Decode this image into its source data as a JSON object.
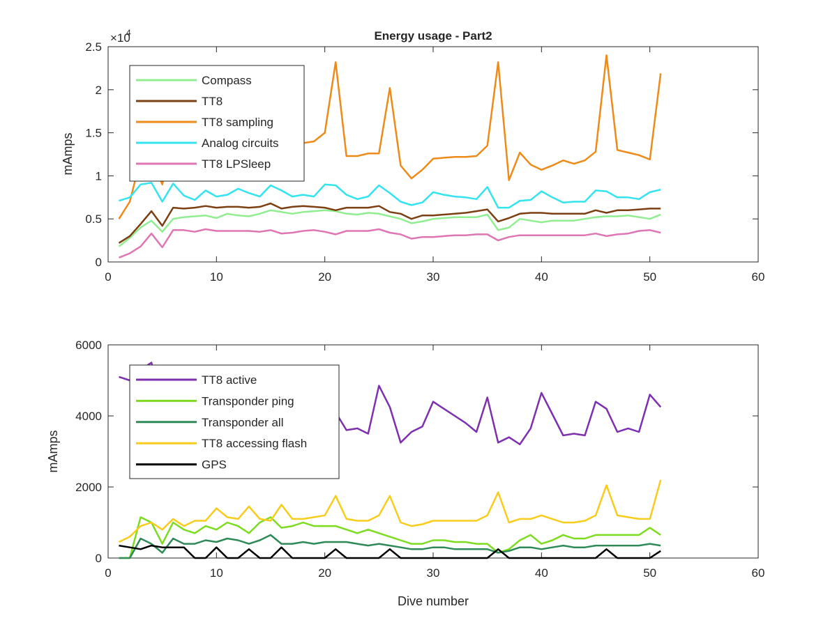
{
  "chart_data": [
    {
      "type": "line",
      "title": "Energy usage - Part2",
      "xlabel": "",
      "ylabel": "mAmps",
      "exponent_label": "×10",
      "exponent_power": "4",
      "xlim": [
        0,
        60
      ],
      "ylim": [
        0,
        25000
      ],
      "xticks": [
        0,
        10,
        20,
        30,
        40,
        50,
        60
      ],
      "xtick_labels": [
        "0",
        "10",
        "20",
        "30",
        "40",
        "50",
        "60"
      ],
      "yticks": [
        0,
        5000,
        10000,
        15000,
        20000,
        25000
      ],
      "ytick_labels": [
        "0",
        "0.5",
        "1",
        "1.5",
        "2",
        "2.5"
      ],
      "grid": false,
      "legend_position": "top-left",
      "x": [
        1,
        2,
        3,
        4,
        5,
        6,
        7,
        8,
        9,
        10,
        11,
        12,
        13,
        14,
        15,
        16,
        17,
        18,
        19,
        20,
        21,
        22,
        23,
        24,
        25,
        26,
        27,
        28,
        29,
        30,
        31,
        32,
        33,
        34,
        35,
        36,
        37,
        38,
        39,
        40,
        41,
        42,
        43,
        44,
        45,
        46,
        47,
        48,
        49,
        50,
        51
      ],
      "series": [
        {
          "name": "Compass",
          "color": "#90ee90",
          "values": [
            1800,
            2800,
            4000,
            4800,
            3500,
            5000,
            5200,
            5300,
            5400,
            5100,
            5600,
            5400,
            5300,
            5600,
            6000,
            5800,
            5600,
            5800,
            5900,
            6000,
            5900,
            5600,
            5500,
            5700,
            5600,
            5300,
            5000,
            4500,
            4700,
            5000,
            5100,
            5200,
            5200,
            5200,
            5500,
            3700,
            4000,
            5000,
            4800,
            4600,
            4800,
            4800,
            4800,
            5000,
            5200,
            5300,
            5300,
            5400,
            5200,
            5000,
            5500
          ]
        },
        {
          "name": "TT8",
          "color": "#7b3f12",
          "values": [
            2200,
            3000,
            4400,
            5900,
            4200,
            6300,
            6200,
            6300,
            6500,
            6300,
            6400,
            6400,
            6300,
            6400,
            6800,
            6200,
            6400,
            6500,
            6400,
            6300,
            6000,
            6300,
            6300,
            6300,
            6500,
            5800,
            5600,
            5000,
            5400,
            5400,
            5500,
            5600,
            5700,
            5900,
            6100,
            4700,
            5100,
            5600,
            5700,
            5700,
            5600,
            5600,
            5600,
            5600,
            6000,
            5700,
            6000,
            6000,
            6100,
            6200,
            6200
          ]
        },
        {
          "name": "TT8 sampling",
          "color": "#ee8a18",
          "values": [
            5000,
            7000,
            12000,
            12000,
            9000,
            15000,
            15500,
            15800,
            16000,
            16000,
            15800,
            15800,
            15800,
            16000,
            15800,
            14000,
            13700,
            13800,
            14000,
            15000,
            23200,
            12300,
            12300,
            12600,
            12600,
            20200,
            11200,
            9700,
            10700,
            12000,
            12100,
            12200,
            12200,
            12300,
            13500,
            23200,
            9500,
            12700,
            11300,
            10700,
            11200,
            11800,
            11400,
            11800,
            12800,
            24000,
            13000,
            12700,
            12400,
            11900,
            21900
          ]
        },
        {
          "name": "Analog circuits",
          "color": "#33e4ee",
          "values": [
            7100,
            7500,
            9000,
            9200,
            7000,
            9100,
            7700,
            7200,
            8300,
            7600,
            7800,
            8500,
            8000,
            7600,
            8900,
            8300,
            7600,
            7800,
            7600,
            9000,
            8900,
            7800,
            7300,
            7600,
            8900,
            8000,
            7000,
            6600,
            6900,
            8100,
            7800,
            7600,
            7500,
            7300,
            8700,
            6300,
            6300,
            7100,
            7200,
            8200,
            7500,
            6900,
            7000,
            7000,
            8300,
            8200,
            7500,
            7500,
            7300,
            8100,
            8400
          ]
        },
        {
          "name": "TT8 LPSleep",
          "color": "#e075b4",
          "values": [
            500,
            1000,
            1800,
            3300,
            1700,
            3700,
            3700,
            3500,
            3800,
            3600,
            3600,
            3600,
            3600,
            3500,
            3700,
            3300,
            3400,
            3600,
            3700,
            3500,
            3200,
            3600,
            3600,
            3600,
            3800,
            3400,
            3200,
            2700,
            2900,
            2900,
            3000,
            3100,
            3100,
            3200,
            3200,
            2500,
            2900,
            3100,
            3100,
            3100,
            3100,
            3100,
            3100,
            3100,
            3300,
            3000,
            3200,
            3300,
            3600,
            3700,
            3400
          ]
        }
      ]
    },
    {
      "type": "line",
      "title": "",
      "xlabel": "Dive number",
      "ylabel": "mAmps",
      "xlim": [
        0,
        60
      ],
      "ylim": [
        0,
        6000
      ],
      "xticks": [
        0,
        10,
        20,
        30,
        40,
        50,
        60
      ],
      "xtick_labels": [
        "0",
        "10",
        "20",
        "30",
        "40",
        "50",
        "60"
      ],
      "yticks": [
        0,
        2000,
        4000,
        6000
      ],
      "ytick_labels": [
        "0",
        "2000",
        "4000",
        "6000"
      ],
      "grid": false,
      "legend_position": "top-left",
      "x": [
        1,
        2,
        3,
        4,
        5,
        6,
        7,
        8,
        9,
        10,
        11,
        12,
        13,
        14,
        15,
        16,
        17,
        18,
        19,
        20,
        21,
        22,
        23,
        24,
        25,
        26,
        27,
        28,
        29,
        30,
        31,
        32,
        33,
        34,
        35,
        36,
        37,
        38,
        39,
        40,
        41,
        42,
        43,
        44,
        45,
        46,
        47,
        48,
        49,
        50,
        51
      ],
      "series": [
        {
          "name": "TT8 active",
          "color": "#7e2fb0",
          "values": [
            5100,
            5000,
            5300,
            5500,
            4300,
            4700,
            4500,
            4400,
            4600,
            4500,
            4400,
            4300,
            4400,
            4400,
            4300,
            4300,
            4300,
            4200,
            4200,
            4000,
            4100,
            3600,
            3650,
            3500,
            4850,
            4250,
            3250,
            3550,
            3700,
            4400,
            4200,
            4000,
            3800,
            3550,
            4520,
            3250,
            3400,
            3200,
            3650,
            4650,
            4050,
            3450,
            3500,
            3450,
            4400,
            4200,
            3550,
            3650,
            3550,
            4600,
            4250
          ]
        },
        {
          "name": "Transponder ping",
          "color": "#7ddc1f",
          "values": [
            0,
            0,
            1150,
            1000,
            400,
            1000,
            800,
            700,
            900,
            800,
            1000,
            900,
            700,
            1000,
            1150,
            850,
            900,
            1000,
            900,
            900,
            900,
            800,
            700,
            800,
            700,
            600,
            500,
            400,
            400,
            500,
            500,
            450,
            450,
            400,
            400,
            150,
            250,
            500,
            650,
            400,
            500,
            650,
            550,
            550,
            650,
            650,
            650,
            650,
            650,
            850,
            650
          ]
        },
        {
          "name": "Transponder all",
          "color": "#2e8b57",
          "values": [
            0,
            0,
            550,
            400,
            150,
            550,
            400,
            400,
            500,
            450,
            550,
            500,
            400,
            500,
            650,
            400,
            400,
            450,
            400,
            450,
            450,
            450,
            400,
            350,
            400,
            350,
            300,
            250,
            250,
            300,
            300,
            250,
            250,
            250,
            250,
            150,
            200,
            300,
            300,
            250,
            300,
            350,
            300,
            300,
            350,
            350,
            350,
            350,
            350,
            400,
            350
          ]
        },
        {
          "name": "TT8 accessing flash",
          "color": "#f8cc1b",
          "values": [
            450,
            600,
            900,
            1000,
            800,
            1100,
            900,
            1050,
            1050,
            1400,
            1150,
            1100,
            1450,
            1100,
            1050,
            1500,
            1100,
            1100,
            1150,
            1200,
            1750,
            1100,
            1050,
            1050,
            1200,
            1750,
            1000,
            900,
            950,
            1050,
            1050,
            1050,
            1050,
            1050,
            1200,
            1850,
            1000,
            1100,
            1100,
            1200,
            1100,
            1000,
            1000,
            1050,
            1200,
            2050,
            1200,
            1150,
            1100,
            1100,
            2200
          ]
        },
        {
          "name": "GPS",
          "color": "#000000",
          "values": [
            350,
            300,
            250,
            350,
            300,
            300,
            300,
            0,
            0,
            300,
            0,
            0,
            250,
            0,
            0,
            300,
            0,
            0,
            0,
            0,
            250,
            0,
            0,
            0,
            0,
            250,
            0,
            0,
            0,
            0,
            0,
            0,
            0,
            0,
            0,
            250,
            0,
            0,
            0,
            0,
            0,
            0,
            0,
            0,
            0,
            250,
            0,
            0,
            0,
            0,
            200
          ]
        }
      ]
    }
  ]
}
